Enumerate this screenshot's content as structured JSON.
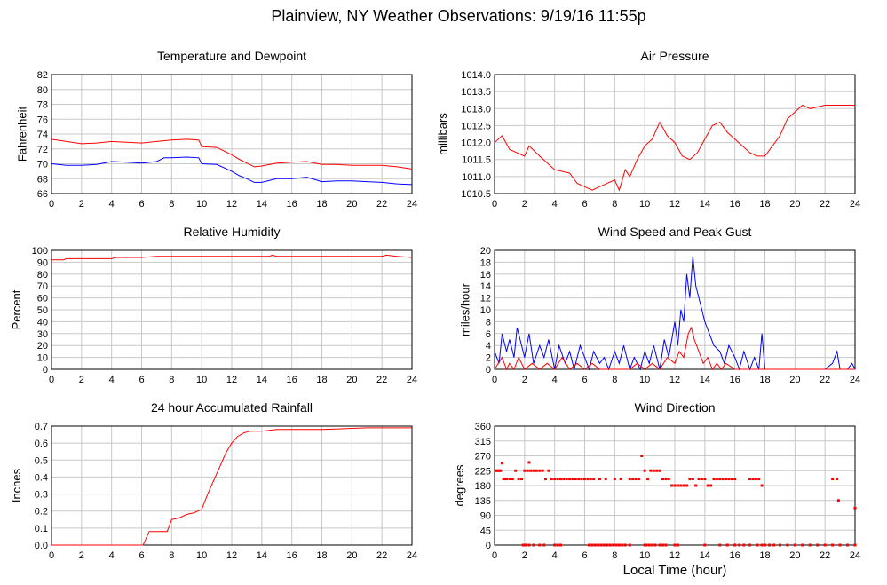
{
  "title": "Plainview, NY Weather Observations: 9/19/16 11:55p",
  "xlabel": "Local Time (hour)",
  "chart_data": [
    {
      "type": "line",
      "title": "Temperature and Dewpoint",
      "ylabel": "Fahrenheit",
      "xlim": [
        0,
        24
      ],
      "ylim": [
        66,
        82
      ],
      "yticks": [
        66,
        68,
        70,
        72,
        74,
        76,
        78,
        80,
        82
      ],
      "yticklabels": [
        "66",
        "68",
        "70",
        "72",
        "74",
        "76",
        "78",
        "80",
        "82"
      ],
      "xticks": [
        0,
        2,
        4,
        6,
        8,
        10,
        12,
        14,
        16,
        18,
        20,
        22,
        24
      ],
      "series": [
        {
          "color": "#ff0000",
          "x": [
            0,
            1,
            2,
            3,
            4,
            5,
            6,
            7,
            8,
            9,
            9.8,
            10,
            11,
            12,
            12.5,
            13,
            13.5,
            14,
            15,
            16,
            17,
            18,
            19,
            20,
            21,
            22,
            23,
            24
          ],
          "y": [
            73.3,
            73.0,
            72.7,
            72.8,
            73.0,
            72.9,
            72.8,
            73.0,
            73.2,
            73.3,
            73.2,
            72.3,
            72.2,
            71.2,
            70.6,
            70.1,
            69.6,
            69.7,
            70.1,
            70.2,
            70.3,
            69.9,
            69.9,
            69.8,
            69.8,
            69.8,
            69.6,
            69.3
          ]
        },
        {
          "color": "#0000ff",
          "x": [
            0,
            1,
            2,
            3,
            4,
            5,
            6,
            7,
            7.5,
            8,
            9,
            9.8,
            10,
            11,
            12,
            12.5,
            13,
            13.5,
            14,
            15,
            16,
            17,
            18,
            19,
            20,
            21,
            22,
            23,
            24
          ],
          "y": [
            70.0,
            69.8,
            69.8,
            69.9,
            70.3,
            70.2,
            70.1,
            70.3,
            70.8,
            70.8,
            70.9,
            70.8,
            70.0,
            69.9,
            69.0,
            68.4,
            68.0,
            67.5,
            67.5,
            68.0,
            68.0,
            68.2,
            67.6,
            67.7,
            67.7,
            67.6,
            67.5,
            67.3,
            67.2
          ]
        }
      ]
    },
    {
      "type": "line",
      "title": "Air Pressure",
      "ylabel": "millibars",
      "xlim": [
        0,
        24
      ],
      "ylim": [
        1010.5,
        1014.0
      ],
      "yticks": [
        1010.5,
        1011.0,
        1011.5,
        1012.0,
        1012.5,
        1013.0,
        1013.5,
        1014.0
      ],
      "yticklabels": [
        "1010.5",
        "1011.0",
        "1011.5",
        "1012.0",
        "1012.5",
        "1013.0",
        "1013.5",
        "1014.0"
      ],
      "xticks": [
        0,
        2,
        4,
        6,
        8,
        10,
        12,
        14,
        16,
        18,
        20,
        22,
        24
      ],
      "series": [
        {
          "color": "#ff0000",
          "x": [
            0,
            0.5,
            1,
            2,
            2.3,
            3,
            4,
            5,
            5.5,
            6,
            6.5,
            7,
            8,
            8.3,
            8.7,
            9,
            9.5,
            10,
            10.5,
            11,
            11.5,
            12,
            12.5,
            13,
            13.5,
            14,
            14.5,
            15,
            15.5,
            16,
            16.5,
            17,
            17.5,
            18,
            18.5,
            19,
            19.5,
            20,
            20.5,
            21,
            22,
            23,
            24
          ],
          "y": [
            1012.0,
            1012.2,
            1011.8,
            1011.6,
            1011.9,
            1011.6,
            1011.2,
            1011.1,
            1010.8,
            1010.7,
            1010.6,
            1010.7,
            1010.9,
            1010.6,
            1011.2,
            1011.0,
            1011.5,
            1011.9,
            1012.1,
            1012.6,
            1012.2,
            1012.0,
            1011.6,
            1011.5,
            1011.7,
            1012.1,
            1012.5,
            1012.6,
            1012.3,
            1012.1,
            1011.9,
            1011.7,
            1011.6,
            1011.6,
            1011.9,
            1012.2,
            1012.7,
            1012.9,
            1013.1,
            1013.0,
            1013.1,
            1013.1,
            1013.1
          ]
        }
      ]
    },
    {
      "type": "line",
      "title": "Relative Humidity",
      "ylabel": "Percent",
      "xlim": [
        0,
        24
      ],
      "ylim": [
        0,
        100
      ],
      "yticks": [
        0,
        10,
        20,
        30,
        40,
        50,
        60,
        70,
        80,
        90,
        100
      ],
      "yticklabels": [
        "0",
        "10",
        "20",
        "30",
        "40",
        "50",
        "60",
        "70",
        "80",
        "90",
        "100"
      ],
      "xticks": [
        0,
        2,
        4,
        6,
        8,
        10,
        12,
        14,
        16,
        18,
        20,
        22,
        24
      ],
      "series": [
        {
          "color": "#ff0000",
          "x": [
            0,
            0.8,
            1,
            4,
            4.3,
            6,
            7,
            10,
            12,
            14.5,
            14.7,
            15,
            20,
            22,
            22.3,
            23,
            24
          ],
          "y": [
            92,
            92,
            93,
            93,
            94,
            94,
            95,
            95,
            95,
            95,
            96,
            95,
            95,
            95,
            96,
            95,
            94
          ]
        }
      ]
    },
    {
      "type": "line",
      "title": "Wind Speed and Peak Gust",
      "ylabel": "miles/hour",
      "xlim": [
        0,
        24
      ],
      "ylim": [
        0,
        20
      ],
      "yticks": [
        0,
        2,
        4,
        6,
        8,
        10,
        12,
        14,
        16,
        18,
        20
      ],
      "yticklabels": [
        "0",
        "2",
        "4",
        "6",
        "8",
        "10",
        "12",
        "14",
        "16",
        "18",
        "20"
      ],
      "xticks": [
        0,
        2,
        4,
        6,
        8,
        10,
        12,
        14,
        16,
        18,
        20,
        22,
        24
      ],
      "series": [
        {
          "color": "#0000ff",
          "x": [
            0,
            0.3,
            0.5,
            0.8,
            1,
            1.3,
            1.5,
            1.8,
            2,
            2.3,
            2.6,
            3,
            3.3,
            3.6,
            4,
            4.3,
            4.7,
            5,
            5.3,
            5.7,
            6,
            6.3,
            6.6,
            7,
            7.3,
            7.6,
            8,
            8.3,
            8.6,
            9,
            9.3,
            9.7,
            10,
            10.3,
            10.6,
            11,
            11.3,
            11.6,
            12,
            12.2,
            12.4,
            12.6,
            12.8,
            13,
            13.2,
            13.4,
            13.6,
            13.8,
            14,
            14.3,
            14.6,
            15,
            15.3,
            15.6,
            16,
            16.3,
            16.6,
            17,
            17.3,
            17.6,
            17.8,
            18,
            19,
            20,
            21,
            22,
            22.5,
            22.8,
            23,
            23.5,
            23.8,
            24
          ],
          "y": [
            3,
            1,
            6,
            3,
            5,
            2,
            7,
            4,
            2,
            6,
            1,
            4,
            2,
            5,
            0,
            4,
            1,
            3,
            0,
            4,
            2,
            0,
            3,
            1,
            2,
            0,
            3,
            1,
            4,
            0,
            2,
            0,
            3,
            1,
            4,
            0,
            5,
            2,
            8,
            4,
            10,
            8,
            16,
            12,
            19,
            14,
            12,
            10,
            8,
            6,
            4,
            3,
            1,
            4,
            2,
            0,
            3,
            0,
            2,
            0,
            6,
            0,
            0,
            0,
            0,
            0,
            1,
            3,
            0,
            0,
            1,
            0
          ]
        },
        {
          "color": "#ff0000",
          "x": [
            0,
            0.5,
            0.8,
            1,
            1.3,
            1.6,
            2,
            2.5,
            3,
            3.5,
            4,
            4.5,
            5,
            5.5,
            6,
            6.5,
            7,
            7.5,
            8,
            8.5,
            9,
            9.5,
            10,
            10.5,
            11,
            11.5,
            12,
            12.3,
            12.6,
            12.9,
            13.1,
            13.3,
            13.6,
            13.9,
            14.2,
            14.5,
            14.8,
            15.1,
            15.4,
            16,
            24
          ],
          "y": [
            0,
            2,
            0,
            1,
            0,
            2,
            0,
            1,
            0,
            1,
            0,
            2,
            0,
            1,
            0,
            1,
            0,
            0,
            0,
            0,
            0,
            1,
            0,
            1,
            0,
            2,
            1,
            3,
            2,
            6,
            7,
            5,
            3,
            1,
            2,
            0,
            1,
            0,
            1,
            0,
            0
          ]
        }
      ]
    },
    {
      "type": "line",
      "title": "24 hour Accumulated Rainfall",
      "ylabel": "Inches",
      "xlim": [
        0,
        24
      ],
      "ylim": [
        0,
        0.7
      ],
      "yticks": [
        0,
        0.1,
        0.2,
        0.3,
        0.4,
        0.5,
        0.6,
        0.7
      ],
      "yticklabels": [
        "0.0",
        "0.1",
        "0.2",
        "0.3",
        "0.4",
        "0.5",
        "0.6",
        "0.7"
      ],
      "xticks": [
        0,
        2,
        4,
        6,
        8,
        10,
        12,
        14,
        16,
        18,
        20,
        22,
        24
      ],
      "series": [
        {
          "color": "#ff0000",
          "x": [
            0,
            6.1,
            6.3,
            6.5,
            7.7,
            8.0,
            8.5,
            9.0,
            9.5,
            10.0,
            10.4,
            10.8,
            11.2,
            11.6,
            12.0,
            12.4,
            12.8,
            13.2,
            14.0,
            14.5,
            15.0,
            18.0,
            21.0,
            24.0
          ],
          "y": [
            0,
            0,
            0.04,
            0.08,
            0.08,
            0.15,
            0.16,
            0.18,
            0.19,
            0.21,
            0.3,
            0.38,
            0.46,
            0.54,
            0.6,
            0.64,
            0.66,
            0.67,
            0.67,
            0.675,
            0.68,
            0.68,
            0.69,
            0.69
          ]
        }
      ]
    },
    {
      "type": "scatter",
      "title": "Wind Direction",
      "ylabel": "degrees",
      "xlim": [
        0,
        24
      ],
      "ylim": [
        0,
        360
      ],
      "yticks": [
        0,
        45,
        90,
        135,
        180,
        225,
        270,
        315,
        360
      ],
      "yticklabels": [
        "0",
        "45",
        "90",
        "135",
        "180",
        "225",
        "270",
        "315",
        "360"
      ],
      "xticks": [
        0,
        2,
        4,
        6,
        8,
        10,
        12,
        14,
        16,
        18,
        20,
        22,
        24
      ],
      "series": [
        {
          "color": "#ff0000",
          "x": [
            0.1,
            0.2,
            0.3,
            0.4,
            0.5,
            0.6,
            0.7,
            0.8,
            1.0,
            1.2,
            1.4,
            1.6,
            1.8,
            2.0,
            2.2,
            2.3,
            2.4,
            2.6,
            2.8,
            3.0,
            3.2,
            3.4,
            3.6,
            3.8,
            4.0,
            4.2,
            4.4,
            4.6,
            4.8,
            5.0,
            5.2,
            5.4,
            5.6,
            5.8,
            6.0,
            6.2,
            6.4,
            6.6,
            7.0,
            7.4,
            8.0,
            8.4,
            9.0,
            9.2,
            9.4,
            9.6,
            9.8,
            10.0,
            10.2,
            10.4,
            10.6,
            10.8,
            11.0,
            11.2,
            11.4,
            11.6,
            11.8,
            12.0,
            12.2,
            12.4,
            12.6,
            12.8,
            13.0,
            13.2,
            13.4,
            13.6,
            13.8,
            14.0,
            14.2,
            14.4,
            14.6,
            14.8,
            15.0,
            15.2,
            15.4,
            15.6,
            15.8,
            16.0,
            17.0,
            17.2,
            17.4,
            17.6,
            17.8,
            22.5,
            22.8,
            22.9,
            24.0
          ],
          "y": [
            225,
            225,
            225,
            225,
            248,
            200,
            200,
            200,
            200,
            200,
            225,
            200,
            200,
            225,
            225,
            250,
            225,
            225,
            225,
            225,
            225,
            200,
            225,
            200,
            200,
            200,
            200,
            200,
            200,
            200,
            200,
            200,
            200,
            200,
            200,
            200,
            200,
            200,
            200,
            200,
            200,
            200,
            200,
            200,
            200,
            200,
            270,
            225,
            200,
            225,
            225,
            225,
            225,
            200,
            200,
            200,
            180,
            180,
            180,
            180,
            180,
            180,
            200,
            200,
            180,
            200,
            200,
            200,
            180,
            180,
            200,
            200,
            200,
            200,
            200,
            200,
            200,
            200,
            200,
            200,
            200,
            200,
            180,
            200,
            200,
            135,
            112
          ]
        },
        {
          "color": "#ff0000",
          "x": [
            1.9,
            2.0,
            2.1,
            2.3,
            2.6,
            3.0,
            3.3,
            4.0,
            4.2,
            4.4,
            6.3,
            6.5,
            6.7,
            6.9,
            7.1,
            7.3,
            7.5,
            7.7,
            7.9,
            8.1,
            8.3,
            8.5,
            8.7,
            9.0,
            10.0,
            10.1,
            10.3,
            10.5,
            10.7,
            11.0,
            11.2,
            11.4,
            12.0,
            12.2,
            14.0,
            15.0,
            15.5,
            16.0,
            16.3,
            16.6,
            17.0,
            17.5,
            17.8,
            18.0,
            18.3,
            18.6,
            19.0,
            19.5,
            20.0,
            20.5,
            21.0,
            21.5,
            22.0,
            22.5,
            23.0,
            23.5,
            24.0
          ],
          "y": [
            0,
            0,
            0,
            0,
            0,
            0,
            0,
            0,
            0,
            0,
            0,
            0,
            0,
            0,
            0,
            0,
            0,
            0,
            0,
            0,
            0,
            0,
            0,
            0,
            0,
            0,
            0,
            0,
            0,
            0,
            0,
            0,
            0,
            0,
            0,
            0,
            0,
            0,
            0,
            0,
            0,
            0,
            0,
            0,
            0,
            0,
            0,
            0,
            0,
            0,
            0,
            0,
            0,
            0,
            0,
            0,
            0
          ]
        }
      ]
    }
  ]
}
